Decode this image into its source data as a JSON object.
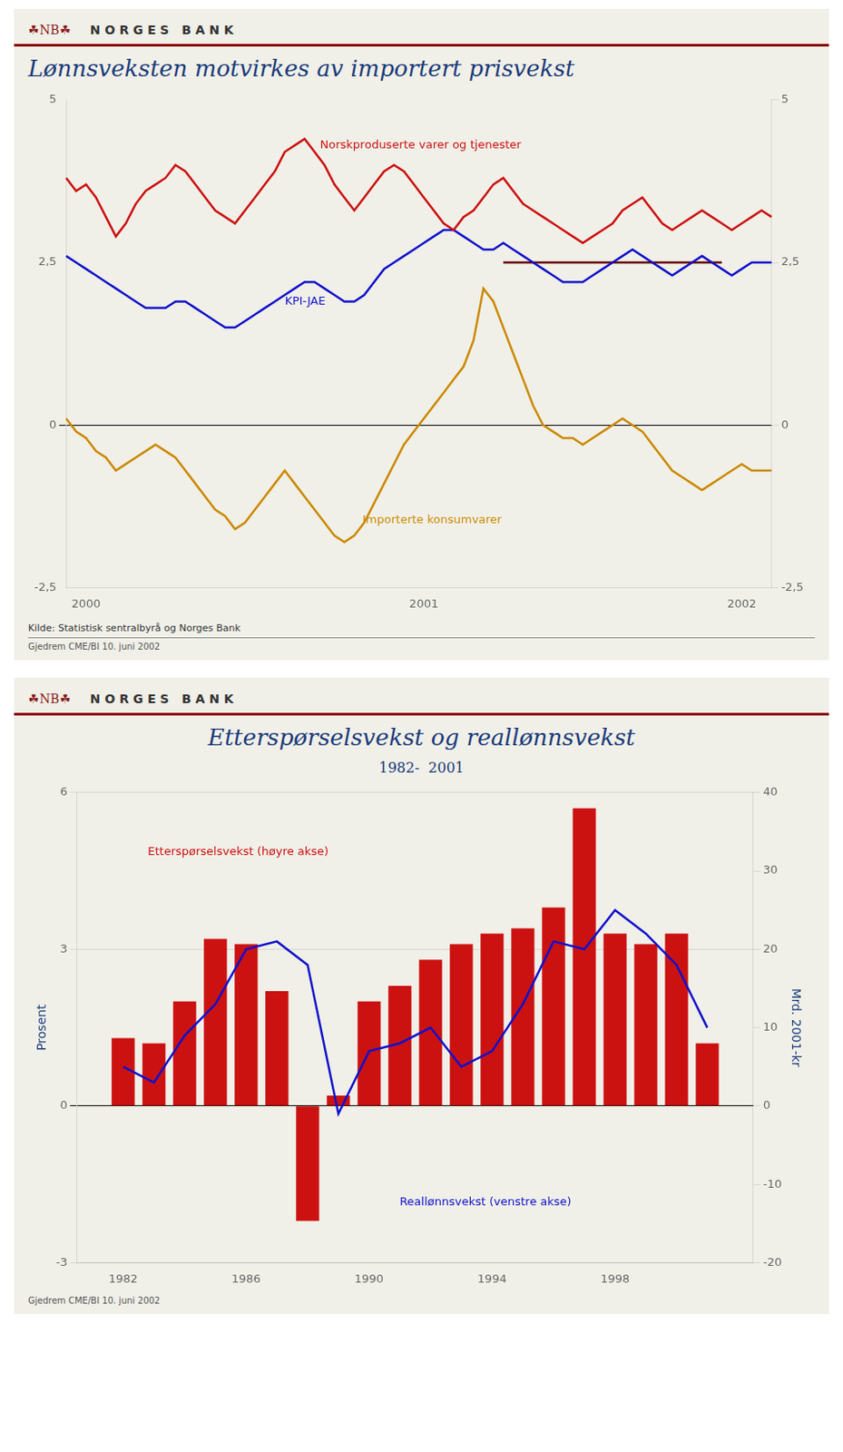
{
  "chart_data": [
    {
      "type": "line",
      "logo": "☘NB☘",
      "header": "N O R G E S   B A N K",
      "title": "Lønnsveksten motvirkes av importert prisvekst",
      "source": "Kilde: Statistisk sentralbyrå og Norges Bank",
      "footer": "Gjedrem CME/BI 10. juni 2002",
      "categories": [
        null,
        null,
        "2000",
        null,
        null,
        null,
        null,
        null,
        null,
        null,
        null,
        null,
        null,
        null,
        null,
        null,
        null,
        null,
        null,
        null,
        null,
        null,
        null,
        null,
        null,
        null,
        null,
        null,
        null,
        null,
        null,
        null,
        null,
        null,
        null,
        null,
        "2001",
        null,
        null,
        null,
        null,
        null,
        null,
        null,
        null,
        null,
        null,
        null,
        null,
        null,
        null,
        null,
        null,
        null,
        null,
        null,
        null,
        null,
        null,
        null,
        null,
        null,
        null,
        null,
        null,
        null,
        null,
        null,
        "2002",
        null,
        null,
        null
      ],
      "series": [
        {
          "name": "Norskproduserte varer og tjenester",
          "color": "#cc1111",
          "values": [
            3.8,
            3.6,
            3.7,
            3.5,
            3.2,
            2.9,
            3.1,
            3.4,
            3.6,
            3.7,
            3.8,
            4.0,
            3.9,
            3.7,
            3.5,
            3.3,
            3.2,
            3.1,
            3.3,
            3.5,
            3.7,
            3.9,
            4.2,
            4.3,
            4.4,
            4.2,
            4.0,
            3.7,
            3.5,
            3.3,
            3.5,
            3.7,
            3.9,
            4.0,
            3.9,
            3.7,
            3.5,
            3.3,
            3.1,
            3.0,
            3.2,
            3.3,
            3.5,
            3.7,
            3.8,
            3.6,
            3.4,
            3.3,
            3.2,
            3.1,
            3.0,
            2.9,
            2.8,
            2.9,
            3.0,
            3.1,
            3.3,
            3.4,
            3.5,
            3.3,
            3.1,
            3.0,
            3.1,
            3.2,
            3.3,
            3.2,
            3.1,
            3.0,
            3.1,
            3.2,
            3.3,
            3.2
          ]
        },
        {
          "name": "KPI-JAE",
          "color": "#1111cc",
          "values": [
            2.6,
            2.5,
            2.4,
            2.3,
            2.2,
            2.1,
            2.0,
            1.9,
            1.8,
            1.8,
            1.8,
            1.9,
            1.9,
            1.8,
            1.7,
            1.6,
            1.5,
            1.5,
            1.6,
            1.7,
            1.8,
            1.9,
            2.0,
            2.1,
            2.2,
            2.2,
            2.1,
            2.0,
            1.9,
            1.9,
            2.0,
            2.2,
            2.4,
            2.5,
            2.6,
            2.7,
            2.8,
            2.9,
            3.0,
            3.0,
            2.9,
            2.8,
            2.7,
            2.7,
            2.8,
            2.7,
            2.6,
            2.5,
            2.4,
            2.3,
            2.2,
            2.2,
            2.2,
            2.3,
            2.4,
            2.5,
            2.6,
            2.7,
            2.6,
            2.5,
            2.4,
            2.3,
            2.4,
            2.5,
            2.6,
            2.5,
            2.4,
            2.3,
            2.4,
            2.5,
            2.5,
            2.5
          ]
        },
        {
          "name": "Importerte konsumvarer",
          "color": "#cc8800",
          "values": [
            0.1,
            -0.1,
            -0.2,
            -0.4,
            -0.5,
            -0.7,
            -0.6,
            -0.5,
            -0.4,
            -0.3,
            -0.4,
            -0.5,
            -0.7,
            -0.9,
            -1.1,
            -1.3,
            -1.4,
            -1.6,
            -1.5,
            -1.3,
            -1.1,
            -0.9,
            -0.7,
            -0.9,
            -1.1,
            -1.3,
            -1.5,
            -1.7,
            -1.8,
            -1.7,
            -1.5,
            -1.2,
            -0.9,
            -0.6,
            -0.3,
            -0.1,
            0.1,
            0.3,
            0.5,
            0.7,
            0.9,
            1.3,
            2.1,
            1.9,
            1.5,
            1.1,
            0.7,
            0.3,
            0.0,
            -0.1,
            -0.2,
            -0.2,
            -0.3,
            -0.2,
            -0.1,
            0.0,
            0.1,
            0.0,
            -0.1,
            -0.3,
            -0.5,
            -0.7,
            -0.8,
            -0.9,
            -1.0,
            -0.9,
            -0.8,
            -0.7,
            -0.6,
            -0.7,
            -0.7,
            -0.7
          ]
        },
        {
          "color": "#660000",
          "values": [
            null,
            null,
            null,
            null,
            null,
            null,
            null,
            null,
            null,
            null,
            null,
            null,
            null,
            null,
            null,
            null,
            null,
            null,
            null,
            null,
            null,
            null,
            null,
            null,
            null,
            null,
            null,
            null,
            null,
            null,
            null,
            null,
            null,
            null,
            null,
            null,
            null,
            null,
            null,
            null,
            null,
            null,
            null,
            null,
            2.5,
            2.5,
            2.5,
            2.5,
            2.5,
            2.5,
            2.5,
            2.5,
            2.5,
            2.5,
            2.5,
            2.5,
            2.5,
            2.5,
            2.5,
            2.5,
            2.5,
            2.5,
            2.5,
            2.5,
            2.5,
            2.5,
            2.5,
            null,
            null,
            null,
            null,
            null
          ]
        }
      ],
      "ylim": [
        -2.5,
        5.0
      ],
      "yticks": [
        {
          "value": -2.5,
          "label": "-2,5"
        },
        0,
        {
          "value": 2.5,
          "label": "2,5"
        },
        5
      ],
      "y2lim": [
        -2.5,
        5.0
      ],
      "y2ticks": [
        {
          "value": -2.5,
          "label": "-2,5"
        },
        0,
        {
          "value": 2.5,
          "label": "2,5"
        },
        5
      ],
      "grid": false
    },
    {
      "type": "bar",
      "logo": "☘NB☘",
      "header": "N O R G E S   B A N K",
      "title": "Etterspørselsvekst og reallønnsvekst",
      "subtitle": "1982-  2001",
      "footer": "Gjedrem CME/BI 10. juni 2002",
      "x": [
        1982,
        1983,
        1984,
        1985,
        1986,
        1987,
        1988,
        1989,
        1990,
        1991,
        1992,
        1993,
        1994,
        1995,
        1996,
        1997,
        1998,
        1999,
        2000,
        2001
      ],
      "series": [
        {
          "name": "Etterspørselsvekst (høyre akse)",
          "type": "bar",
          "color": "#cc1111",
          "values": [
            1.3,
            1.2,
            2.0,
            3.2,
            3.1,
            2.2,
            -2.2,
            0.2,
            2.0,
            2.3,
            2.8,
            3.1,
            3.3,
            3.4,
            3.8,
            5.7,
            3.3,
            3.1,
            3.3,
            1.2
          ]
        },
        {
          "name": "Reallønnsvekst (venstre akse)",
          "type": "line",
          "color": "#1111cc",
          "axis": "y2",
          "values": [
            5,
            3,
            9,
            13,
            20,
            21,
            18,
            -1,
            7,
            8,
            10,
            5,
            7,
            13,
            21,
            20,
            25,
            22,
            18,
            10
          ]
        }
      ],
      "xlim": [
        1980.5,
        2002.5
      ],
      "xticks": [
        1982,
        1986,
        1990,
        1994,
        1998
      ],
      "ylim": [
        -3,
        6
      ],
      "yticks": [
        -3,
        0,
        3,
        6
      ],
      "y2lim": [
        -20,
        40
      ],
      "y2ticks": [
        -20,
        -10,
        0,
        10,
        20,
        30,
        40
      ],
      "ylabel": "Prosent",
      "y2label": "Mrd. 2001-kr",
      "grid": true
    }
  ]
}
